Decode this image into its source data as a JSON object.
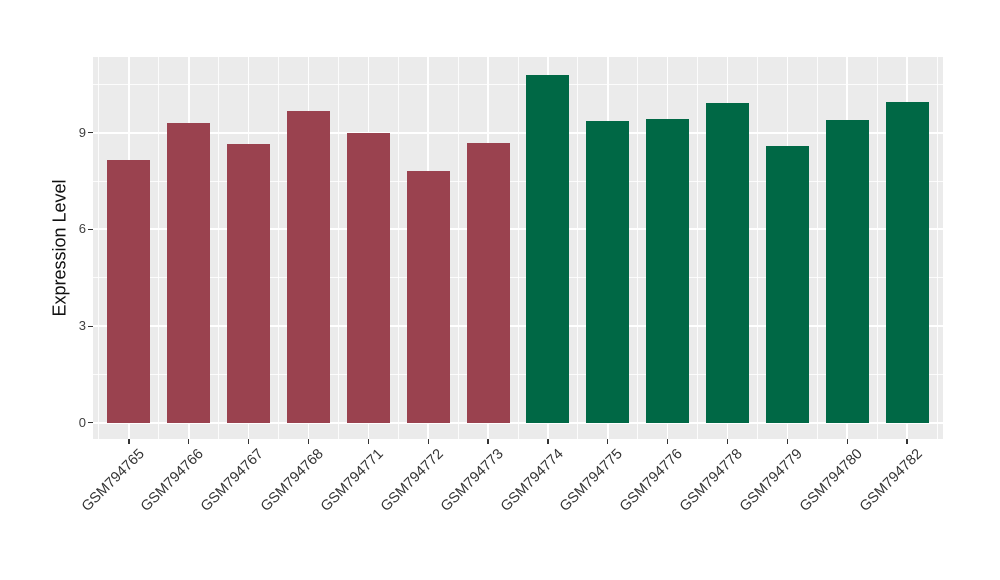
{
  "chart_data": {
    "type": "bar",
    "title": "",
    "xlabel": "",
    "ylabel": "Expression Level",
    "categories": [
      "GSM794765",
      "GSM794766",
      "GSM794767",
      "GSM794768",
      "GSM794771",
      "GSM794772",
      "GSM794773",
      "GSM794774",
      "GSM794775",
      "GSM794776",
      "GSM794778",
      "GSM794779",
      "GSM794780",
      "GSM794782"
    ],
    "values": [
      8.14,
      9.29,
      8.64,
      9.68,
      9.0,
      7.8,
      8.69,
      10.8,
      9.35,
      9.44,
      9.92,
      8.58,
      9.39,
      9.95
    ],
    "groups": [
      "group1",
      "group1",
      "group1",
      "group1",
      "group1",
      "group1",
      "group1",
      "group2",
      "group2",
      "group2",
      "group2",
      "group2",
      "group2",
      "group2"
    ],
    "group_colors": {
      "group1": "#9A424F",
      "group2": "#006845"
    },
    "yticks": [
      0,
      3,
      6,
      9
    ],
    "yticks_minor": [
      1.5,
      4.5,
      7.5,
      10.5
    ],
    "ylim": [
      -0.5,
      11.35
    ],
    "grid": true,
    "legend": false,
    "panel_background": "#EBEBEB",
    "gridline_color": "#FFFFFF",
    "axis_text_color": "#404040",
    "bar_width_fraction": 0.72,
    "x_label_rotation_deg": 45
  }
}
